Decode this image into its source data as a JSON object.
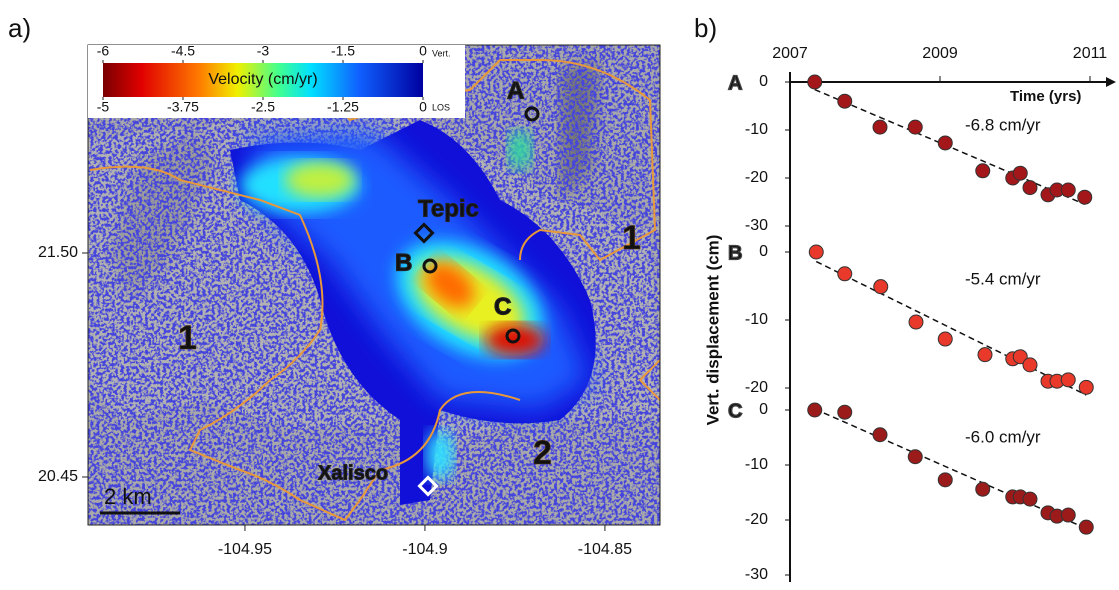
{
  "panel_labels": [
    "a)",
    "b)"
  ],
  "map": {
    "xlim": [
      -104.9936,
      -104.8347
    ],
    "ylim": [
      20.225,
      22.475
    ],
    "xticks": [
      -104.95,
      -104.9,
      -104.85
    ],
    "yticks": [
      {
        "value": 21.5,
        "label": "21.50"
      },
      {
        "value": 20.45,
        "label": "20.45"
      }
    ],
    "colorbar": {
      "title": "Velocity (cm/yr)",
      "vert_lim": [
        -6,
        0
      ],
      "vert_ticks": [
        -6,
        -4.5,
        -3,
        -1.5,
        0
      ],
      "vert_label": "Vert.",
      "los_lim": [
        -5,
        0
      ],
      "los_ticks": [
        -5,
        -3.75,
        -2.5,
        -1.25,
        0
      ],
      "los_label": "LOS"
    },
    "sites": [
      {
        "label": "A"
      },
      {
        "label": "B"
      },
      {
        "label": "C"
      }
    ],
    "places": [
      "Tepic",
      "Xalisco"
    ],
    "zones": [
      "1",
      "1",
      "2"
    ],
    "scale_bar": "2 km"
  },
  "panel_b": {
    "ylabel": "Vert. displacement (cm)"
  },
  "chart_data": [
    {
      "type": "scatter",
      "name": "A",
      "annotation": "-6.8 cm/yr",
      "xlabel": "Time (yrs)",
      "xlim": [
        2007,
        2011
      ],
      "xticks": [
        2007,
        2009,
        2011
      ],
      "ylim": [
        -30,
        0
      ],
      "yticks": [
        0,
        -10,
        -20,
        -30
      ],
      "series": [
        {
          "color": "#a3161a",
          "x": [
            2007.33,
            2007.73,
            2008.2,
            2008.67,
            2009.07,
            2009.57,
            2009.97,
            2010.07,
            2010.2,
            2010.44,
            2010.56,
            2010.71,
            2010.93
          ],
          "values": [
            0,
            -4,
            -9.4,
            -9.4,
            -12.7,
            -18.5,
            -20,
            -19,
            -22,
            -23.5,
            -22.5,
            -22.5,
            -24
          ]
        }
      ]
    },
    {
      "type": "scatter",
      "name": "B",
      "annotation": "-5.4 cm/yr",
      "xlim": [
        2007,
        2011
      ],
      "ylim": [
        -20,
        0
      ],
      "yticks": [
        0,
        -10,
        -20
      ],
      "series": [
        {
          "color": "#e8392a",
          "x": [
            2007.35,
            2007.73,
            2008.21,
            2008.68,
            2009.07,
            2009.6,
            2009.97,
            2010.07,
            2010.2,
            2010.44,
            2010.56,
            2010.71,
            2010.95
          ],
          "values": [
            0,
            -3.2,
            -5.1,
            -10.3,
            -12.8,
            -15.1,
            -15.7,
            -15.4,
            -16.6,
            -19,
            -19,
            -18.8,
            -19.9
          ]
        }
      ]
    },
    {
      "type": "scatter",
      "name": "C",
      "annotation": "-6.0 cm/yr",
      "xlim": [
        2007,
        2011
      ],
      "ylim": [
        -30,
        0
      ],
      "yticks": [
        0,
        -10,
        -20,
        -30
      ],
      "series": [
        {
          "color": "#9b1b1b",
          "x": [
            2007.33,
            2007.73,
            2008.2,
            2008.67,
            2009.07,
            2009.57,
            2009.97,
            2010.07,
            2010.2,
            2010.44,
            2010.56,
            2010.71,
            2010.95
          ],
          "values": [
            0,
            -0.4,
            -4.5,
            -8.5,
            -12.7,
            -14.4,
            -15.8,
            -15.8,
            -16.2,
            -18.7,
            -19.3,
            -19.1,
            -21.3
          ]
        }
      ]
    }
  ]
}
